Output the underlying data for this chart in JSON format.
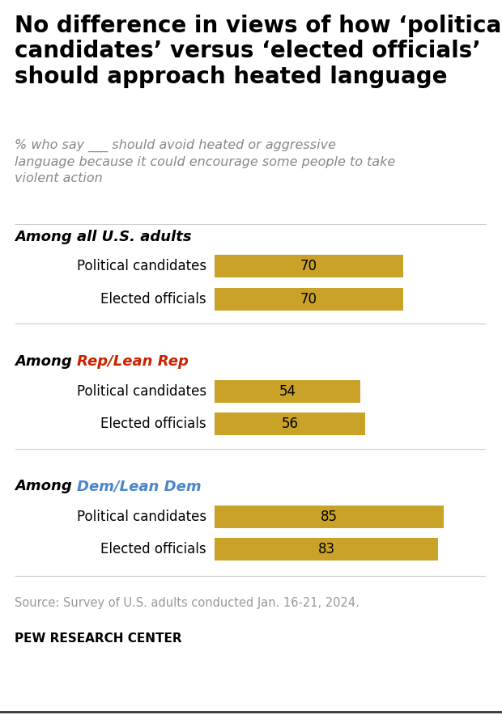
{
  "title": "No difference in views of how ‘political\ncandidates’ versus ‘elected officials’\nshould approach heated language",
  "subtitle": "% who say ___ should avoid heated or aggressive\nlanguage because it could encourage some people to take\nviolent action",
  "groups": [
    {
      "label_among": "Among ",
      "label_colored": "all U.S. adults",
      "label_color": "#000000",
      "bars": [
        {
          "label": "Political candidates",
          "value": 70
        },
        {
          "label": "Elected officials",
          "value": 70
        }
      ]
    },
    {
      "label_among": "Among ",
      "label_colored": "Rep/Lean Rep",
      "label_color": "#cc2200",
      "bars": [
        {
          "label": "Political candidates",
          "value": 54
        },
        {
          "label": "Elected officials",
          "value": 56
        }
      ]
    },
    {
      "label_among": "Among ",
      "label_colored": "Dem/Lean Dem",
      "label_color": "#4a86c8",
      "bars": [
        {
          "label": "Political candidates",
          "value": 85
        },
        {
          "label": "Elected officials",
          "value": 83
        }
      ]
    }
  ],
  "bar_color": "#c9a227",
  "bar_max": 100,
  "source": "Source: Survey of U.S. adults conducted Jan. 16-21, 2024.",
  "footer": "PEW RESEARCH CENTER",
  "background_color": "#ffffff",
  "title_fontsize": 20,
  "subtitle_fontsize": 11.5,
  "bar_label_fontsize": 12,
  "value_fontsize": 12,
  "group_label_fontsize": 13,
  "source_fontsize": 10.5,
  "footer_fontsize": 11
}
